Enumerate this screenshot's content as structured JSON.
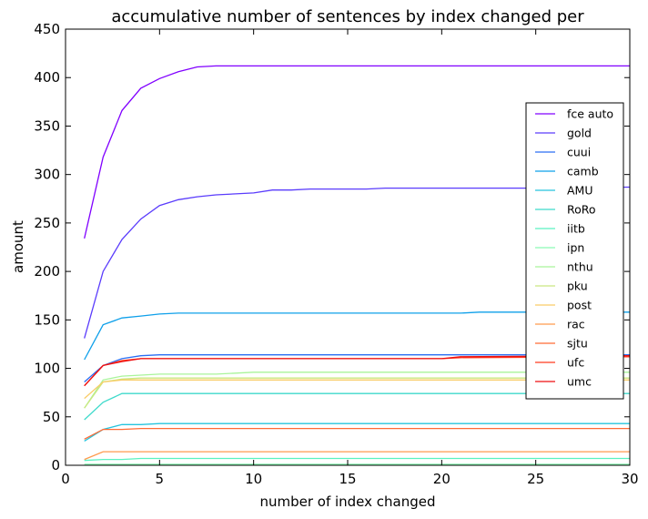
{
  "chart_data": {
    "type": "line",
    "title": "accumulative number of sentences by index changed per",
    "xlabel": "number of index changed",
    "ylabel": "amount",
    "xlim": [
      0,
      30
    ],
    "ylim": [
      0,
      450
    ],
    "xticks": [
      "0",
      "5",
      "10",
      "15",
      "20",
      "25",
      "30"
    ],
    "yticks": [
      "0",
      "50",
      "100",
      "150",
      "200",
      "250",
      "300",
      "350",
      "400",
      "450"
    ],
    "grid": false,
    "legend_position": "right",
    "series": [
      {
        "name": "fce auto",
        "color": "#8000ff",
        "values": [
          [
            1,
            234
          ],
          [
            2,
            318
          ],
          [
            3,
            366
          ],
          [
            4,
            389
          ],
          [
            5,
            399
          ],
          [
            6,
            406
          ],
          [
            7,
            411
          ],
          [
            8,
            412
          ],
          [
            10,
            412
          ],
          [
            15,
            412
          ],
          [
            20,
            412
          ],
          [
            25,
            412
          ],
          [
            30,
            412
          ]
        ]
      },
      {
        "name": "gold",
        "color": "#5a3cfc",
        "values": [
          [
            1,
            131
          ],
          [
            2,
            200
          ],
          [
            3,
            233
          ],
          [
            4,
            254
          ],
          [
            5,
            268
          ],
          [
            6,
            274
          ],
          [
            7,
            277
          ],
          [
            8,
            279
          ],
          [
            10,
            281
          ],
          [
            11,
            284
          ],
          [
            12,
            284
          ],
          [
            13,
            285
          ],
          [
            16,
            285
          ],
          [
            17,
            286
          ],
          [
            25,
            286
          ],
          [
            30,
            287
          ]
        ]
      },
      {
        "name": "cuui",
        "color": "#2a6ef3",
        "values": [
          [
            1,
            86
          ],
          [
            2,
            103
          ],
          [
            3,
            110
          ],
          [
            4,
            113
          ],
          [
            5,
            114
          ],
          [
            10,
            114
          ],
          [
            20,
            114
          ],
          [
            21,
            114
          ],
          [
            30,
            114
          ]
        ]
      },
      {
        "name": "camb",
        "color": "#0fa0ea",
        "values": [
          [
            1,
            109
          ],
          [
            2,
            145
          ],
          [
            3,
            152
          ],
          [
            4,
            154
          ],
          [
            5,
            156
          ],
          [
            6,
            157
          ],
          [
            10,
            157
          ],
          [
            20,
            157
          ],
          [
            21,
            157
          ],
          [
            22,
            158
          ],
          [
            30,
            158
          ]
        ]
      },
      {
        "name": "AMU",
        "color": "#26c4de",
        "values": [
          [
            1,
            25
          ],
          [
            2,
            37
          ],
          [
            3,
            42
          ],
          [
            4,
            42
          ],
          [
            5,
            43
          ],
          [
            10,
            43
          ],
          [
            20,
            43
          ],
          [
            30,
            43
          ]
        ]
      },
      {
        "name": "RoRo",
        "color": "#3fdacb",
        "values": [
          [
            1,
            47
          ],
          [
            2,
            65
          ],
          [
            3,
            74
          ],
          [
            4,
            74
          ],
          [
            10,
            74
          ],
          [
            20,
            74
          ],
          [
            30,
            74
          ]
        ]
      },
      {
        "name": "iitb",
        "color": "#5af2c0",
        "values": [
          [
            1,
            5
          ],
          [
            2,
            6
          ],
          [
            3,
            6
          ],
          [
            4,
            7
          ],
          [
            10,
            7
          ],
          [
            20,
            7
          ],
          [
            30,
            7
          ]
        ]
      },
      {
        "name": "ipn",
        "color": "#8afbb3",
        "values": [
          [
            1,
            1
          ],
          [
            2,
            1
          ],
          [
            10,
            1
          ],
          [
            20,
            1
          ],
          [
            30,
            1
          ]
        ]
      },
      {
        "name": "nthu",
        "color": "#a9f49a",
        "values": [
          [
            1,
            59
          ],
          [
            2,
            88
          ],
          [
            3,
            92
          ],
          [
            4,
            93
          ],
          [
            5,
            94
          ],
          [
            8,
            94
          ],
          [
            10,
            96
          ],
          [
            15,
            96
          ],
          [
            20,
            96
          ],
          [
            30,
            96
          ]
        ]
      },
      {
        "name": "pku",
        "color": "#c9e880",
        "values": [
          [
            1,
            59
          ],
          [
            2,
            86
          ],
          [
            3,
            89
          ],
          [
            4,
            90
          ],
          [
            5,
            90
          ],
          [
            10,
            90
          ],
          [
            20,
            90
          ],
          [
            30,
            90
          ]
        ]
      },
      {
        "name": "post",
        "color": "#f9cc67",
        "values": [
          [
            1,
            69
          ],
          [
            2,
            86
          ],
          [
            3,
            88
          ],
          [
            4,
            88
          ],
          [
            10,
            88
          ],
          [
            20,
            88
          ],
          [
            30,
            88
          ]
        ]
      },
      {
        "name": "rac",
        "color": "#ff9a4e",
        "values": [
          [
            1,
            6
          ],
          [
            2,
            14
          ],
          [
            3,
            14
          ],
          [
            10,
            14
          ],
          [
            20,
            14
          ],
          [
            30,
            14
          ]
        ]
      },
      {
        "name": "sjtu",
        "color": "#ff6a35",
        "values": [
          [
            1,
            27
          ],
          [
            2,
            37
          ],
          [
            3,
            37
          ],
          [
            4,
            38
          ],
          [
            5,
            38
          ],
          [
            10,
            38
          ],
          [
            20,
            38
          ],
          [
            30,
            38
          ]
        ]
      },
      {
        "name": "ufc",
        "color": "#ff3a1e",
        "values": [
          [
            1,
            82
          ],
          [
            2,
            103
          ],
          [
            3,
            108
          ],
          [
            4,
            110
          ],
          [
            5,
            110
          ],
          [
            10,
            110
          ],
          [
            20,
            110
          ],
          [
            21,
            111
          ],
          [
            30,
            112
          ]
        ]
      },
      {
        "name": "umc",
        "color": "#ee0f10",
        "values": [
          [
            1,
            82
          ],
          [
            2,
            103
          ],
          [
            3,
            107
          ],
          [
            4,
            110
          ],
          [
            5,
            110
          ],
          [
            10,
            110
          ],
          [
            20,
            110
          ],
          [
            21,
            112
          ],
          [
            30,
            113
          ]
        ]
      }
    ]
  }
}
